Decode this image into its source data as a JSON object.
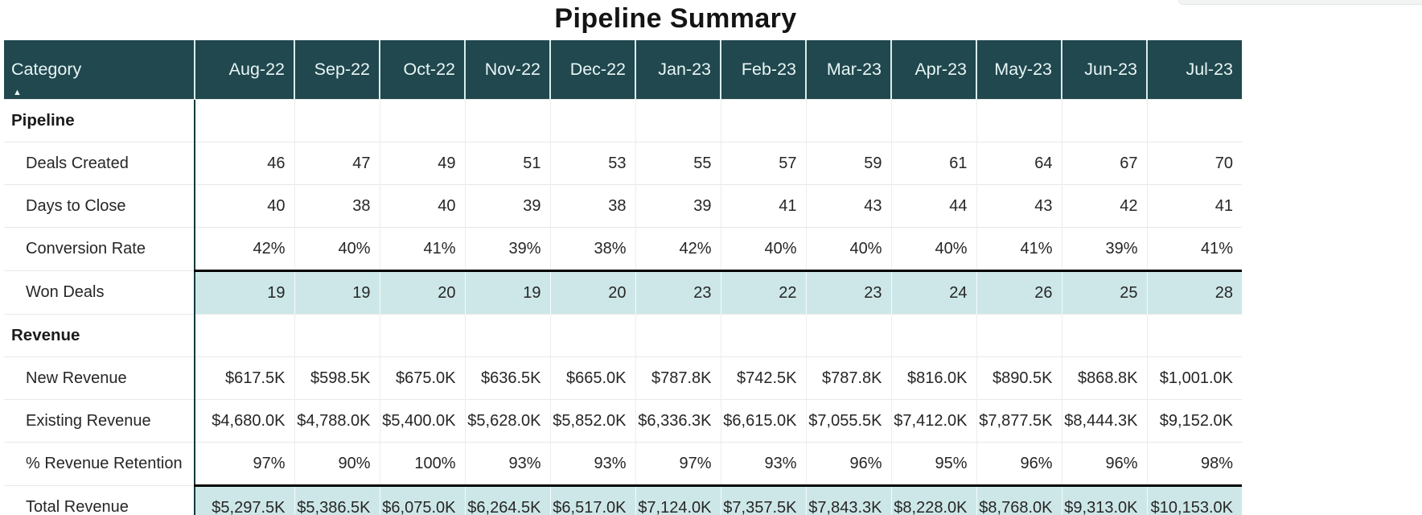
{
  "title": "Pipeline Summary",
  "header": {
    "category_label": "Category"
  },
  "icons": {
    "sort_ascending_icon": "▲"
  },
  "colors": {
    "header_bg": "#20484e",
    "header_text": "#e9f5f5",
    "header_divider": "#d9eded",
    "divider": "#143a3f",
    "highlight": "#cde7e8",
    "emphasis_border": "#000000"
  },
  "chart_data": {
    "type": "table",
    "title": "Pipeline Summary",
    "columns": [
      "Category",
      "Aug-22",
      "Sep-22",
      "Oct-22",
      "Nov-22",
      "Dec-22",
      "Jan-23",
      "Feb-23",
      "Mar-23",
      "Apr-23",
      "May-23",
      "Jun-23",
      "Jul-23"
    ],
    "layout": {
      "sort_column": "Category",
      "sort_direction": "ascending",
      "highlight_rows_have_black_top_border": true
    },
    "sections": [
      {
        "label": "Pipeline",
        "rows": [
          {
            "label": "Deals Created",
            "highlight": false,
            "values": [
              "46",
              "47",
              "49",
              "51",
              "53",
              "55",
              "57",
              "59",
              "61",
              "64",
              "67",
              "70"
            ]
          },
          {
            "label": "Days to Close",
            "highlight": false,
            "values": [
              "40",
              "38",
              "40",
              "39",
              "38",
              "39",
              "41",
              "43",
              "44",
              "43",
              "42",
              "41"
            ]
          },
          {
            "label": "Conversion Rate",
            "highlight": false,
            "values": [
              "42%",
              "40%",
              "41%",
              "39%",
              "38%",
              "42%",
              "40%",
              "40%",
              "40%",
              "41%",
              "39%",
              "41%"
            ]
          },
          {
            "label": "Won Deals",
            "highlight": true,
            "values": [
              "19",
              "19",
              "20",
              "19",
              "20",
              "23",
              "22",
              "23",
              "24",
              "26",
              "25",
              "28"
            ]
          }
        ]
      },
      {
        "label": "Revenue",
        "rows": [
          {
            "label": "New Revenue",
            "highlight": false,
            "values": [
              "$617.5K",
              "$598.5K",
              "$675.0K",
              "$636.5K",
              "$665.0K",
              "$787.8K",
              "$742.5K",
              "$787.8K",
              "$816.0K",
              "$890.5K",
              "$868.8K",
              "$1,001.0K"
            ]
          },
          {
            "label": "Existing Revenue",
            "highlight": false,
            "values": [
              "$4,680.0K",
              "$4,788.0K",
              "$5,400.0K",
              "$5,628.0K",
              "$5,852.0K",
              "$6,336.3K",
              "$6,615.0K",
              "$7,055.5K",
              "$7,412.0K",
              "$7,877.5K",
              "$8,444.3K",
              "$9,152.0K"
            ]
          },
          {
            "label": "% Revenue Retention",
            "highlight": false,
            "values": [
              "97%",
              "90%",
              "100%",
              "93%",
              "93%",
              "97%",
              "93%",
              "96%",
              "95%",
              "96%",
              "96%",
              "98%"
            ]
          },
          {
            "label": "Total Revenue",
            "highlight": true,
            "values": [
              "$5,297.5K",
              "$5,386.5K",
              "$6,075.0K",
              "$6,264.5K",
              "$6,517.0K",
              "$7,124.0K",
              "$7,357.5K",
              "$7,843.3K",
              "$8,228.0K",
              "$8,768.0K",
              "$9,313.0K",
              "$10,153.0K"
            ]
          }
        ]
      }
    ]
  }
}
